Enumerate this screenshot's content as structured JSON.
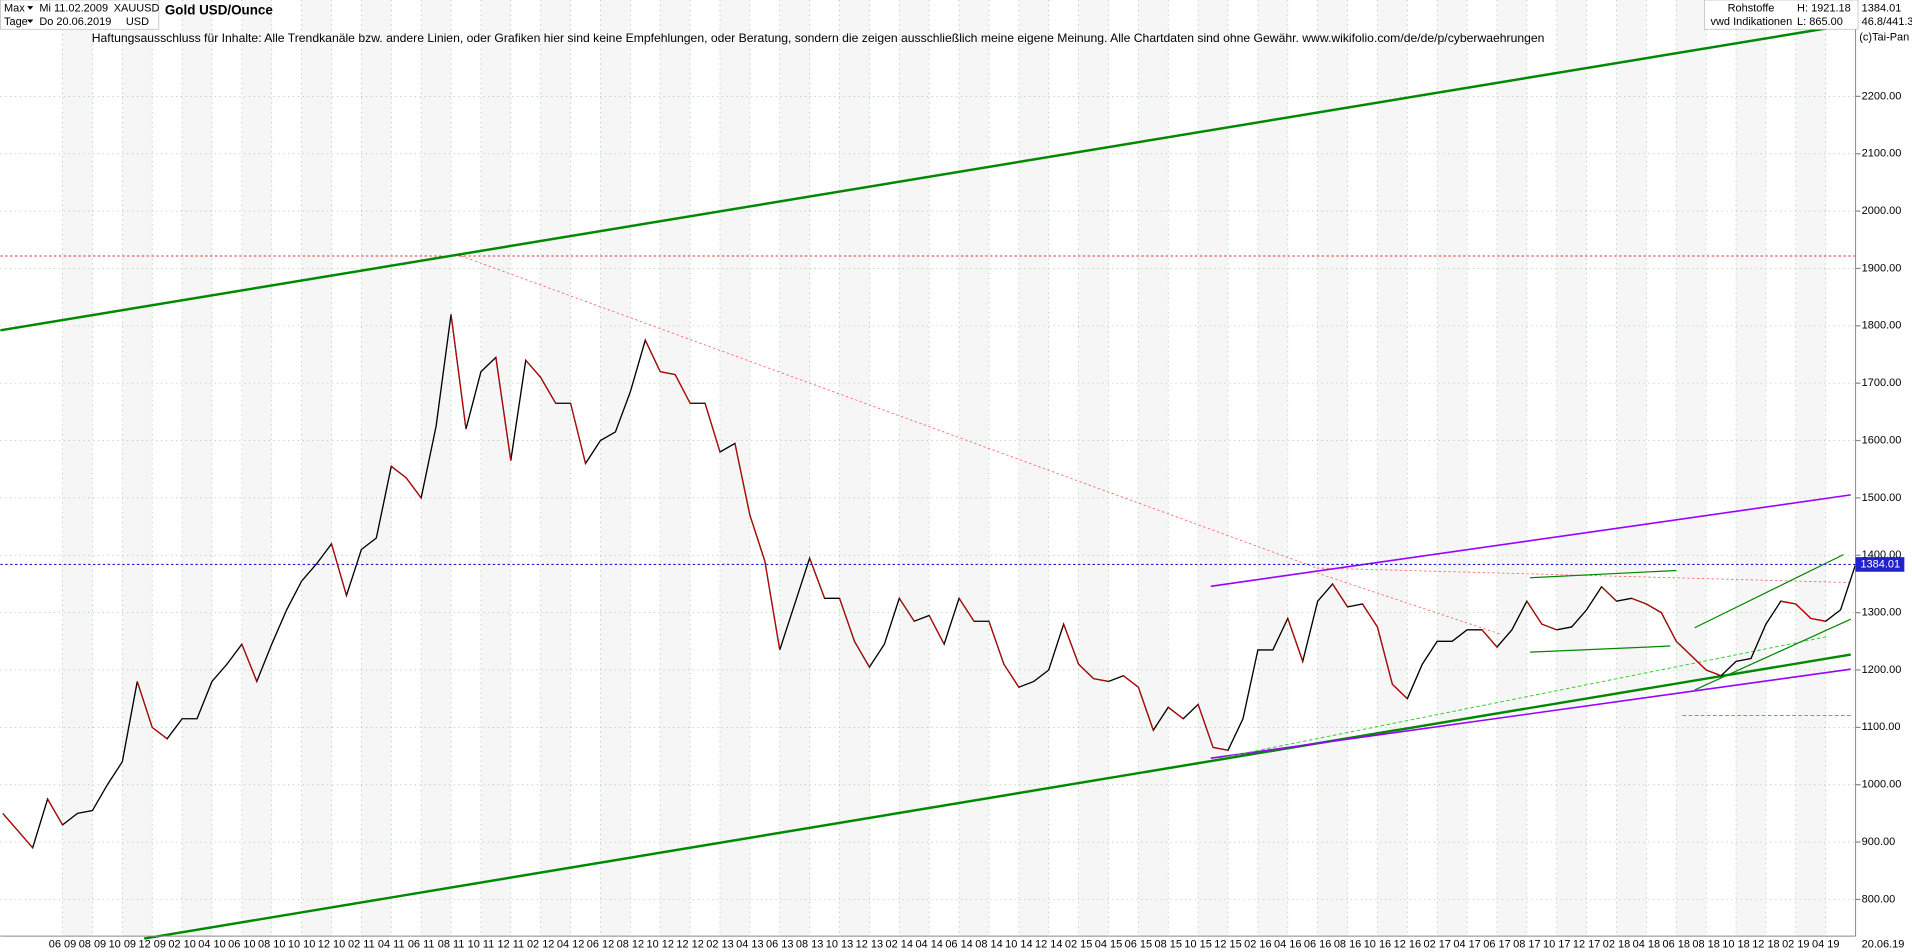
{
  "header": {
    "range": "Max",
    "start": "Mi 11.02.2009",
    "symbol": "XAUUSD",
    "title": "Gold USD/Ounce",
    "period": "Tage",
    "end": "Do 20.06.2019",
    "currency": "USD",
    "group": "Rohstoffe",
    "high": "H: 1921.18",
    "last": "1384.01",
    "source": "vwd Indikationen",
    "low": "L: 865.00",
    "volume": "46.8/441.3",
    "copyright": "(c)Tai-Pan",
    "disclaimer": "Haftungsausschluss für Inhalte: Alle Trendkanäle bzw. andere Linien, oder Grafiken hier sind keine Empfehlungen, oder Beratung, sondern die zeigen ausschließlich meine eigene Meinung. Alle Chartdaten sind ohne Gewähr.  www.wikifolio.com/de/de/p/cyberwaehrungen",
    "date": "20.06.19"
  },
  "chart_data": {
    "type": "line",
    "color": "#000000",
    "grid": true,
    "categories": [
      null,
      null,
      null,
      null,
      "06 09",
      null,
      "08 09",
      null,
      "10 09",
      null,
      "12 09",
      null,
      "02 10",
      null,
      "04 10",
      null,
      "06 10",
      null,
      "08 10",
      null,
      "10 10",
      null,
      "12 10",
      null,
      "02 11",
      null,
      "04 11",
      null,
      "06 11",
      null,
      "08 11",
      null,
      "10 11",
      null,
      "12 11",
      null,
      "02 12",
      null,
      "04 12",
      null,
      "06 12",
      null,
      "08 12",
      null,
      "10 12",
      null,
      "12 12",
      null,
      "02 13",
      null,
      "04 13",
      null,
      "06 13",
      null,
      "08 13",
      null,
      "10 13",
      null,
      "12 13",
      null,
      "02 14",
      null,
      "04 14",
      null,
      "06 14",
      null,
      "08 14",
      null,
      "10 14",
      null,
      "12 14",
      null,
      "02 15",
      null,
      "04 15",
      null,
      "06 15",
      null,
      "08 15",
      null,
      "10 15",
      null,
      "12 15",
      null,
      "02 16",
      null,
      "04 16",
      null,
      "06 16",
      null,
      "08 16",
      null,
      "10 16",
      null,
      "12 16",
      null,
      "02 17",
      null,
      "04 17",
      null,
      "06 17",
      null,
      "08 17",
      null,
      "10 17",
      null,
      "12 17",
      null,
      "02 18",
      null,
      "04 18",
      null,
      "06 18",
      null,
      "08 18",
      null,
      "10 18",
      null,
      "12 18",
      null,
      "02 19",
      null,
      "04 19",
      null,
      null
    ],
    "values": [
      950,
      920,
      890,
      975,
      930,
      950,
      955,
      1000,
      1040,
      1180,
      1100,
      1080,
      1115,
      1115,
      1180,
      1210,
      1245,
      1180,
      1245,
      1305,
      1355,
      1385,
      1420,
      1330,
      1410,
      1430,
      1555,
      1535,
      1500,
      1625,
      1820,
      1620,
      1720,
      1745,
      1565,
      1740,
      1710,
      1665,
      1665,
      1560,
      1600,
      1615,
      1685,
      1775,
      1720,
      1715,
      1665,
      1665,
      1580,
      1595,
      1470,
      1390,
      1235,
      1315,
      1395,
      1325,
      1325,
      1250,
      1205,
      1245,
      1325,
      1285,
      1295,
      1245,
      1325,
      1285,
      1285,
      1210,
      1170,
      1180,
      1200,
      1280,
      1210,
      1185,
      1180,
      1190,
      1170,
      1095,
      1135,
      1115,
      1140,
      1065,
      1060,
      1115,
      1235,
      1235,
      1290,
      1215,
      1320,
      1350,
      1310,
      1315,
      1275,
      1175,
      1150,
      1210,
      1250,
      1250,
      1270,
      1270,
      1240,
      1270,
      1320,
      1280,
      1270,
      1275,
      1305,
      1345,
      1320,
      1325,
      1315,
      1300,
      1250,
      1225,
      1200,
      1190,
      1215,
      1220,
      1280,
      1320,
      1315,
      1290,
      1285,
      1305,
      1384
    ],
    "current_price": 1384.01,
    "ylim": [
      736,
      2368
    ],
    "yticks": [
      {
        "value": 800,
        "label": "800.00"
      },
      {
        "value": 900,
        "label": "900.00"
      },
      {
        "value": 1000,
        "label": "1000.00"
      },
      {
        "value": 1100,
        "label": "1100.00"
      },
      {
        "value": 1200,
        "label": "1200.00"
      },
      {
        "value": 1300,
        "label": "1300.00"
      },
      {
        "value": 1400,
        "label": "1400.00"
      },
      {
        "value": 1500,
        "label": "1500.00"
      },
      {
        "value": 1600,
        "label": "1600.00"
      },
      {
        "value": 1700,
        "label": "1700.00"
      },
      {
        "value": 1800,
        "label": "1800.00"
      },
      {
        "value": 1900,
        "label": "1900.00"
      },
      {
        "value": 2000,
        "label": "2000.00"
      },
      {
        "value": 2100,
        "label": "2100.00"
      },
      {
        "value": 2200,
        "label": "2200.00"
      }
    ]
  }
}
